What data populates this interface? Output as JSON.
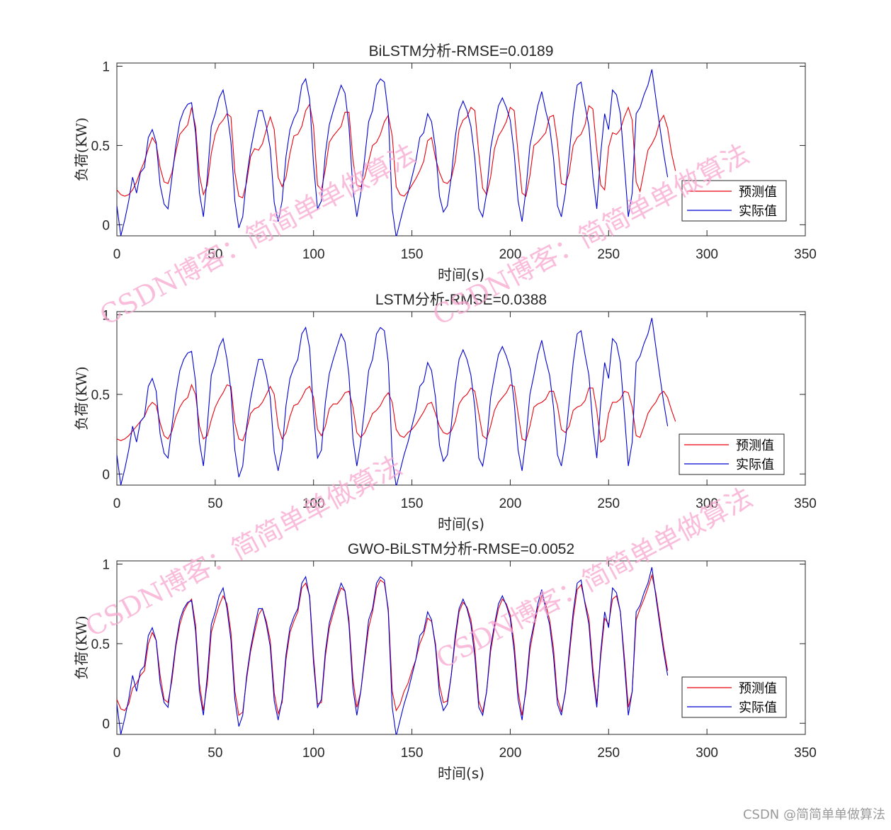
{
  "watermark": "CSDN博客：简简单单做算法",
  "credit": "CSDN @简简单单做算法",
  "chart_data": [
    {
      "type": "line",
      "title": "BiLSTM分析-RMSE=0.0189",
      "xlabel": "时间(s)",
      "ylabel": "负荷(KW)",
      "xlim": [
        0,
        350
      ],
      "ylim": [
        -0.07,
        1.02
      ],
      "xticks": [
        0,
        50,
        100,
        150,
        200,
        250,
        300,
        350
      ],
      "yticks": [
        0,
        0.5,
        1
      ],
      "legend_position": "bottom-right",
      "series": [
        {
          "name": "预测值",
          "color": "#e8000b",
          "sample_step": 2,
          "values": [
            0.22,
            0.19,
            0.18,
            0.19,
            0.22,
            0.27,
            0.34,
            0.4,
            0.48,
            0.55,
            0.51,
            0.36,
            0.27,
            0.26,
            0.33,
            0.46,
            0.57,
            0.6,
            0.63,
            0.74,
            0.62,
            0.31,
            0.19,
            0.25,
            0.45,
            0.57,
            0.63,
            0.66,
            0.7,
            0.68,
            0.33,
            0.18,
            0.17,
            0.27,
            0.43,
            0.48,
            0.47,
            0.51,
            0.6,
            0.68,
            0.6,
            0.3,
            0.24,
            0.3,
            0.45,
            0.56,
            0.57,
            0.62,
            0.72,
            0.76,
            0.62,
            0.25,
            0.22,
            0.35,
            0.52,
            0.56,
            0.59,
            0.62,
            0.71,
            0.71,
            0.41,
            0.25,
            0.24,
            0.3,
            0.4,
            0.5,
            0.52,
            0.57,
            0.65,
            0.69,
            0.56,
            0.24,
            0.19,
            0.18,
            0.21,
            0.25,
            0.29,
            0.34,
            0.4,
            0.53,
            0.55,
            0.42,
            0.33,
            0.27,
            0.26,
            0.29,
            0.4,
            0.6,
            0.66,
            0.68,
            0.74,
            0.72,
            0.45,
            0.23,
            0.19,
            0.3,
            0.48,
            0.56,
            0.6,
            0.65,
            0.74,
            0.72,
            0.45,
            0.2,
            0.18,
            0.31,
            0.5,
            0.52,
            0.55,
            0.58,
            0.68,
            0.69,
            0.52,
            0.26,
            0.25,
            0.33,
            0.5,
            0.55,
            0.57,
            0.63,
            0.75,
            0.73,
            0.47,
            0.25,
            0.22,
            0.49,
            0.58,
            0.57,
            0.6,
            0.68,
            0.74,
            0.66,
            0.27,
            0.21,
            0.34,
            0.47,
            0.51,
            0.56,
            0.65,
            0.69,
            0.61,
            0.45,
            0.34
          ]
        },
        {
          "name": "实际值",
          "color": "#0000d0",
          "sample_step": 2,
          "values": [
            0.12,
            -0.07,
            0.03,
            0.15,
            0.3,
            0.2,
            0.33,
            0.36,
            0.55,
            0.6,
            0.52,
            0.25,
            0.13,
            0.1,
            0.3,
            0.5,
            0.65,
            0.72,
            0.76,
            0.77,
            0.58,
            0.2,
            0.05,
            0.3,
            0.62,
            0.7,
            0.8,
            0.85,
            0.72,
            0.52,
            0.15,
            -0.02,
            0.05,
            0.3,
            0.47,
            0.6,
            0.72,
            0.72,
            0.62,
            0.48,
            0.14,
            0.02,
            0.15,
            0.43,
            0.6,
            0.67,
            0.72,
            0.88,
            0.92,
            0.79,
            0.38,
            0.1,
            0.15,
            0.45,
            0.63,
            0.72,
            0.8,
            0.88,
            0.83,
            0.62,
            0.22,
            0.05,
            0.2,
            0.42,
            0.65,
            0.72,
            0.88,
            0.92,
            0.9,
            0.7,
            0.1,
            -0.08,
            0.02,
            0.12,
            0.2,
            0.3,
            0.4,
            0.55,
            0.58,
            0.7,
            0.65,
            0.48,
            0.18,
            0.08,
            0.12,
            0.3,
            0.55,
            0.72,
            0.78,
            0.72,
            0.62,
            0.42,
            0.1,
            0.05,
            0.2,
            0.48,
            0.62,
            0.75,
            0.8,
            0.74,
            0.66,
            0.45,
            0.15,
            0.02,
            0.22,
            0.5,
            0.62,
            0.75,
            0.84,
            0.72,
            0.62,
            0.42,
            0.12,
            0.05,
            0.2,
            0.45,
            0.7,
            0.88,
            0.9,
            0.75,
            0.62,
            0.3,
            0.1,
            0.45,
            0.7,
            0.6,
            0.85,
            0.82,
            0.7,
            0.38,
            0.05,
            0.2,
            0.7,
            0.74,
            0.82,
            0.88,
            0.98,
            0.8,
            0.62,
            0.45,
            0.3
          ]
        }
      ]
    },
    {
      "type": "line",
      "title": "LSTM分析-RMSE=0.0388",
      "xlabel": "时间(s)",
      "ylabel": "负荷(KW)",
      "xlim": [
        0,
        350
      ],
      "ylim": [
        -0.07,
        1.02
      ],
      "xticks": [
        0,
        50,
        100,
        150,
        200,
        250,
        300,
        350
      ],
      "yticks": [
        0,
        0.5,
        1
      ],
      "legend_position": "bottom-right",
      "series": [
        {
          "name": "预测值",
          "color": "#e8000b",
          "sample_step": 2,
          "values": [
            0.22,
            0.21,
            0.22,
            0.24,
            0.27,
            0.3,
            0.33,
            0.36,
            0.42,
            0.45,
            0.43,
            0.32,
            0.24,
            0.22,
            0.27,
            0.36,
            0.42,
            0.46,
            0.48,
            0.56,
            0.5,
            0.3,
            0.22,
            0.24,
            0.34,
            0.42,
            0.47,
            0.51,
            0.56,
            0.55,
            0.32,
            0.22,
            0.21,
            0.28,
            0.38,
            0.41,
            0.42,
            0.45,
            0.5,
            0.55,
            0.5,
            0.3,
            0.22,
            0.26,
            0.36,
            0.43,
            0.44,
            0.48,
            0.53,
            0.55,
            0.48,
            0.28,
            0.24,
            0.3,
            0.41,
            0.44,
            0.44,
            0.47,
            0.51,
            0.52,
            0.42,
            0.26,
            0.23,
            0.26,
            0.32,
            0.38,
            0.4,
            0.43,
            0.48,
            0.51,
            0.45,
            0.28,
            0.24,
            0.23,
            0.26,
            0.28,
            0.31,
            0.35,
            0.39,
            0.44,
            0.45,
            0.38,
            0.3,
            0.26,
            0.25,
            0.27,
            0.33,
            0.44,
            0.48,
            0.5,
            0.54,
            0.52,
            0.38,
            0.24,
            0.22,
            0.3,
            0.4,
            0.45,
            0.48,
            0.51,
            0.56,
            0.55,
            0.38,
            0.22,
            0.21,
            0.3,
            0.42,
            0.44,
            0.45,
            0.47,
            0.52,
            0.52,
            0.43,
            0.28,
            0.26,
            0.3,
            0.4,
            0.42,
            0.43,
            0.46,
            0.54,
            0.54,
            0.4,
            0.2,
            0.22,
            0.38,
            0.45,
            0.45,
            0.47,
            0.52,
            0.51,
            0.42,
            0.24,
            0.23,
            0.3,
            0.38,
            0.42,
            0.45,
            0.5,
            0.52,
            0.48,
            0.4,
            0.33
          ]
        },
        {
          "name": "实际值",
          "color": "#0000d0",
          "sample_step": 2,
          "values": [
            0.12,
            -0.07,
            0.03,
            0.15,
            0.3,
            0.2,
            0.33,
            0.36,
            0.55,
            0.6,
            0.52,
            0.25,
            0.13,
            0.1,
            0.3,
            0.5,
            0.65,
            0.72,
            0.76,
            0.77,
            0.58,
            0.2,
            0.05,
            0.3,
            0.62,
            0.7,
            0.8,
            0.85,
            0.72,
            0.52,
            0.15,
            -0.02,
            0.05,
            0.3,
            0.47,
            0.6,
            0.72,
            0.72,
            0.62,
            0.48,
            0.14,
            0.02,
            0.15,
            0.43,
            0.6,
            0.67,
            0.72,
            0.88,
            0.92,
            0.79,
            0.38,
            0.1,
            0.15,
            0.45,
            0.63,
            0.72,
            0.8,
            0.88,
            0.83,
            0.62,
            0.22,
            0.05,
            0.2,
            0.42,
            0.65,
            0.72,
            0.88,
            0.92,
            0.9,
            0.7,
            0.1,
            -0.08,
            0.02,
            0.12,
            0.2,
            0.3,
            0.4,
            0.55,
            0.58,
            0.7,
            0.65,
            0.48,
            0.18,
            0.08,
            0.12,
            0.3,
            0.55,
            0.72,
            0.78,
            0.72,
            0.62,
            0.42,
            0.1,
            0.05,
            0.2,
            0.48,
            0.62,
            0.75,
            0.8,
            0.74,
            0.66,
            0.45,
            0.15,
            0.02,
            0.22,
            0.5,
            0.62,
            0.75,
            0.84,
            0.72,
            0.62,
            0.42,
            0.12,
            0.05,
            0.2,
            0.45,
            0.7,
            0.88,
            0.9,
            0.75,
            0.62,
            0.3,
            0.1,
            0.45,
            0.7,
            0.6,
            0.85,
            0.82,
            0.7,
            0.38,
            0.05,
            0.2,
            0.7,
            0.74,
            0.82,
            0.88,
            0.98,
            0.8,
            0.62,
            0.45,
            0.3
          ]
        }
      ]
    },
    {
      "type": "line",
      "title": "GWO-BiLSTM分析-RMSE=0.0052",
      "xlabel": "时间(s)",
      "ylabel": "负荷(KW)",
      "xlim": [
        0,
        350
      ],
      "ylim": [
        -0.07,
        1.02
      ],
      "xticks": [
        0,
        50,
        100,
        150,
        200,
        250,
        300,
        350
      ],
      "yticks": [
        0,
        0.5,
        1
      ],
      "legend_position": "bottom-right",
      "series": [
        {
          "name": "预测值",
          "color": "#e8000b",
          "sample_step": 2,
          "values": [
            0.15,
            0.09,
            0.08,
            0.12,
            0.22,
            0.25,
            0.3,
            0.33,
            0.5,
            0.57,
            0.52,
            0.3,
            0.15,
            0.13,
            0.27,
            0.48,
            0.62,
            0.7,
            0.75,
            0.78,
            0.62,
            0.25,
            0.08,
            0.25,
            0.57,
            0.66,
            0.74,
            0.8,
            0.75,
            0.57,
            0.2,
            0.05,
            0.07,
            0.28,
            0.45,
            0.57,
            0.68,
            0.72,
            0.64,
            0.52,
            0.19,
            0.06,
            0.13,
            0.4,
            0.57,
            0.64,
            0.7,
            0.85,
            0.88,
            0.8,
            0.42,
            0.12,
            0.13,
            0.42,
            0.6,
            0.69,
            0.78,
            0.85,
            0.83,
            0.65,
            0.28,
            0.1,
            0.2,
            0.4,
            0.6,
            0.7,
            0.85,
            0.9,
            0.88,
            0.72,
            0.2,
            0.08,
            0.12,
            0.2,
            0.25,
            0.33,
            0.4,
            0.5,
            0.56,
            0.66,
            0.64,
            0.5,
            0.24,
            0.13,
            0.14,
            0.3,
            0.52,
            0.7,
            0.76,
            0.73,
            0.65,
            0.47,
            0.14,
            0.07,
            0.2,
            0.45,
            0.6,
            0.72,
            0.78,
            0.75,
            0.68,
            0.5,
            0.2,
            0.05,
            0.2,
            0.46,
            0.6,
            0.72,
            0.8,
            0.75,
            0.65,
            0.47,
            0.16,
            0.07,
            0.19,
            0.42,
            0.66,
            0.84,
            0.87,
            0.76,
            0.66,
            0.35,
            0.12,
            0.42,
            0.66,
            0.62,
            0.78,
            0.8,
            0.7,
            0.42,
            0.1,
            0.2,
            0.65,
            0.72,
            0.78,
            0.85,
            0.93,
            0.82,
            0.65,
            0.48,
            0.33
          ]
        },
        {
          "name": "实际值",
          "color": "#0000d0",
          "sample_step": 2,
          "values": [
            0.12,
            -0.07,
            0.03,
            0.15,
            0.3,
            0.2,
            0.33,
            0.36,
            0.55,
            0.6,
            0.52,
            0.25,
            0.13,
            0.1,
            0.3,
            0.5,
            0.65,
            0.72,
            0.76,
            0.77,
            0.58,
            0.2,
            0.05,
            0.3,
            0.62,
            0.7,
            0.8,
            0.85,
            0.72,
            0.52,
            0.15,
            -0.02,
            0.05,
            0.3,
            0.47,
            0.6,
            0.72,
            0.72,
            0.62,
            0.48,
            0.14,
            0.02,
            0.15,
            0.43,
            0.6,
            0.67,
            0.72,
            0.88,
            0.92,
            0.79,
            0.38,
            0.1,
            0.15,
            0.45,
            0.63,
            0.72,
            0.8,
            0.88,
            0.83,
            0.62,
            0.22,
            0.05,
            0.2,
            0.42,
            0.65,
            0.72,
            0.88,
            0.92,
            0.9,
            0.7,
            0.1,
            -0.08,
            0.02,
            0.12,
            0.2,
            0.3,
            0.4,
            0.55,
            0.58,
            0.7,
            0.65,
            0.48,
            0.18,
            0.08,
            0.12,
            0.3,
            0.55,
            0.72,
            0.78,
            0.72,
            0.62,
            0.42,
            0.1,
            0.05,
            0.2,
            0.48,
            0.62,
            0.75,
            0.8,
            0.74,
            0.66,
            0.45,
            0.15,
            0.02,
            0.22,
            0.5,
            0.62,
            0.75,
            0.84,
            0.72,
            0.62,
            0.42,
            0.12,
            0.05,
            0.2,
            0.45,
            0.7,
            0.88,
            0.9,
            0.75,
            0.62,
            0.3,
            0.1,
            0.45,
            0.7,
            0.6,
            0.85,
            0.82,
            0.7,
            0.38,
            0.05,
            0.2,
            0.7,
            0.74,
            0.82,
            0.88,
            0.98,
            0.8,
            0.62,
            0.45,
            0.3
          ]
        }
      ]
    }
  ]
}
